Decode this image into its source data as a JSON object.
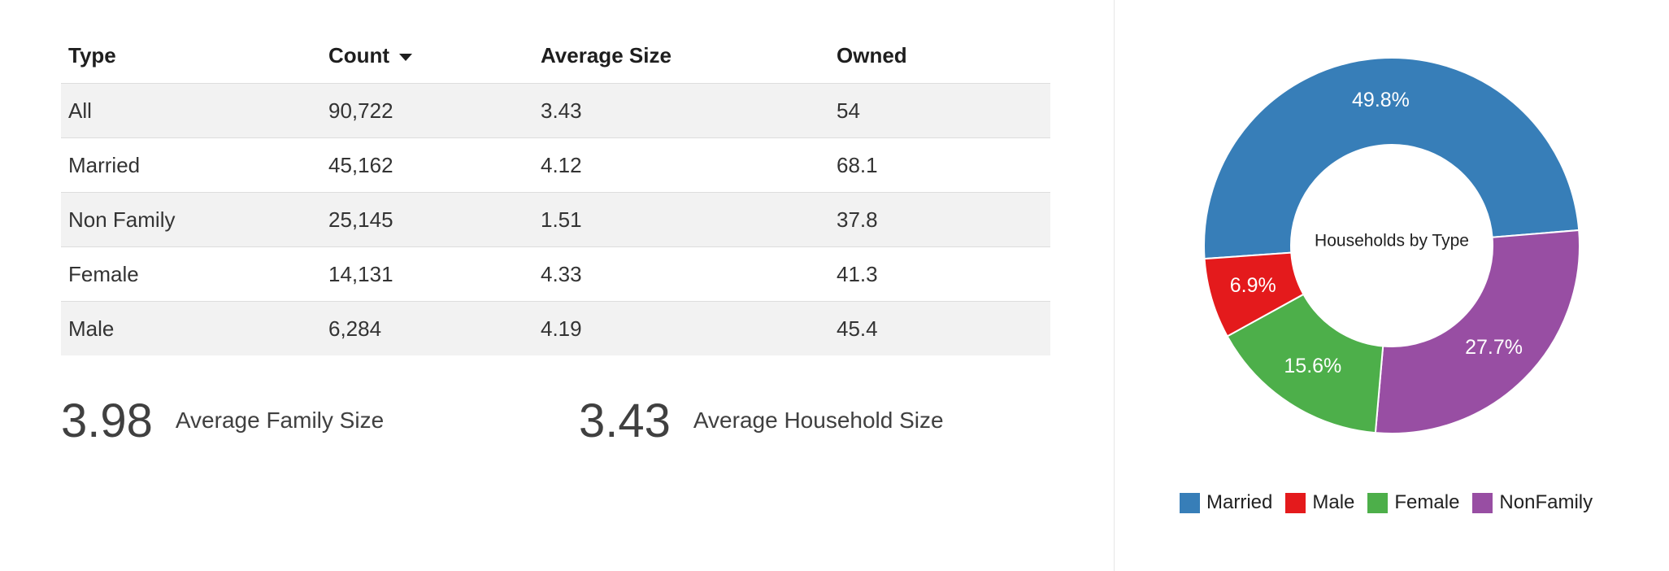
{
  "table": {
    "headers": [
      "Type",
      "Count",
      "Average Size",
      "Owned"
    ],
    "rows": [
      {
        "type": "All",
        "count": "90,722",
        "avg_size": "3.43",
        "owned": "54"
      },
      {
        "type": "Married",
        "count": "45,162",
        "avg_size": "4.12",
        "owned": "68.1"
      },
      {
        "type": "Non Family",
        "count": "25,145",
        "avg_size": "1.51",
        "owned": "37.8"
      },
      {
        "type": "Female",
        "count": "14,131",
        "avg_size": "4.33",
        "owned": "41.3"
      },
      {
        "type": "Male",
        "count": "6,284",
        "avg_size": "4.19",
        "owned": "45.4"
      }
    ],
    "sort_icon": "caret-down-icon"
  },
  "stats": [
    {
      "value": "3.98",
      "label": "Average Family Size"
    },
    {
      "value": "3.43",
      "label": "Average Household Size"
    }
  ],
  "chart_data": {
    "type": "pie",
    "style": "donut",
    "title": "Households by Type",
    "slices": [
      {
        "name": "Married",
        "value": 49.8,
        "label": "49.8%",
        "color": "#377eb8"
      },
      {
        "name": "NonFamily",
        "value": 27.7,
        "label": "27.7%",
        "color": "#984ea3"
      },
      {
        "name": "Female",
        "value": 15.6,
        "label": "15.6%",
        "color": "#4daf4a"
      },
      {
        "name": "Male",
        "value": 6.9,
        "label": "6.9%",
        "color": "#e41a1c"
      }
    ],
    "legend": {
      "position": "bottom",
      "entries": [
        {
          "name": "Married",
          "color": "#377eb8"
        },
        {
          "name": "Male",
          "color": "#e41a1c"
        },
        {
          "name": "Female",
          "color": "#4daf4a"
        },
        {
          "name": "NonFamily",
          "color": "#984ea3"
        }
      ]
    }
  }
}
